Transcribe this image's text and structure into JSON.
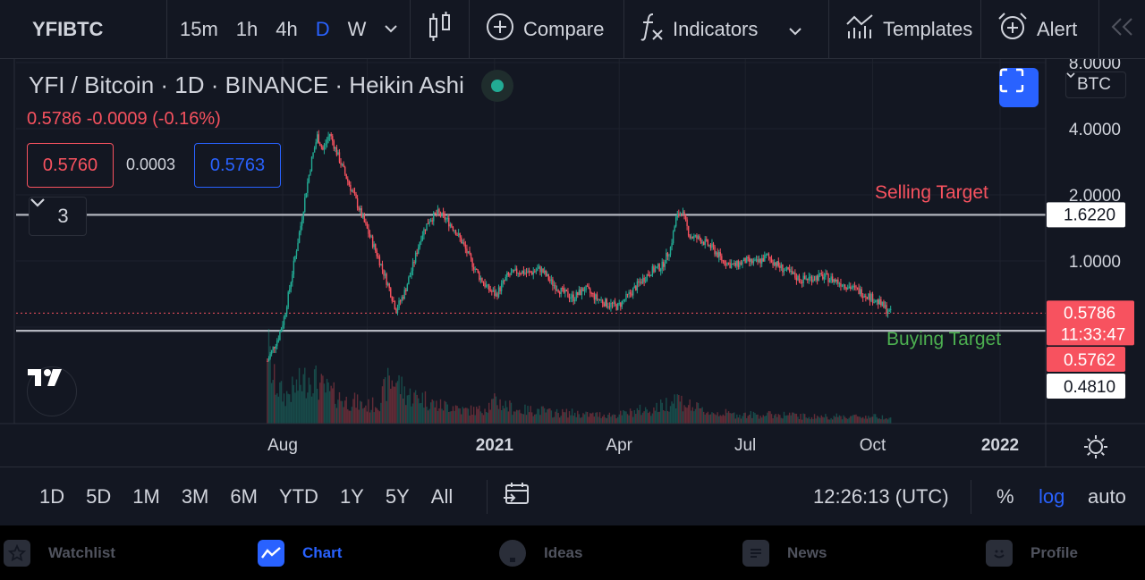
{
  "toolbar": {
    "symbol": "YFIBTC",
    "intervals": [
      "15m",
      "1h",
      "4h",
      "D",
      "W"
    ],
    "active_interval": "D",
    "compare_label": "Compare",
    "indicators_label": "Indicators",
    "templates_label": "Templates",
    "alert_label": "Alert"
  },
  "legend": {
    "title": "YFI / Bitcoin · 1D · BINANCE · Heikin Ashi",
    "price_change": "0.5786  -0.0009 (-0.16%)",
    "sell_price": "0.5760",
    "spread": "0.0003",
    "buy_price": "0.5763",
    "indicator_count": "3"
  },
  "currency_label": "BTC",
  "annotations": {
    "selling_target": "Selling Target",
    "buying_target": "Buying Target"
  },
  "price_axis": {
    "ticks": [
      "8.0000",
      "4.0000",
      "2.0000",
      "1.0000"
    ],
    "top_line_label": "1.6220",
    "last_price": "0.5786",
    "countdown": "11:33:47",
    "bid_label": "0.5762",
    "bottom_line_label": "0.4810"
  },
  "time_axis": {
    "labels": [
      {
        "text": "Aug",
        "bold": false
      },
      {
        "text": "2021",
        "bold": true
      },
      {
        "text": "Apr",
        "bold": false
      },
      {
        "text": "Jul",
        "bold": false
      },
      {
        "text": "Oct",
        "bold": false
      },
      {
        "text": "2022",
        "bold": true
      }
    ]
  },
  "range_bar": {
    "ranges": [
      "1D",
      "5D",
      "1M",
      "3M",
      "6M",
      "YTD",
      "1Y",
      "5Y",
      "All"
    ],
    "clock": "12:26:13 (UTC)",
    "percent_label": "%",
    "log_label": "log",
    "auto_label": "auto"
  },
  "bottom_nav": [
    {
      "label": "Watchlist",
      "icon": "star-icon",
      "active": false
    },
    {
      "label": "Chart",
      "icon": "chart-icon",
      "active": true
    },
    {
      "label": "Ideas",
      "icon": "lightbulb-icon",
      "active": false
    },
    {
      "label": "News",
      "icon": "news-icon",
      "active": false
    },
    {
      "label": "Profile",
      "icon": "smiley-icon",
      "active": false
    }
  ],
  "colors": {
    "up": "#22ab94",
    "down": "#f7525f",
    "accent": "#2962ff",
    "buy_target": "#4caf50"
  },
  "chart_data": {
    "type": "candlestick",
    "style": "Heikin Ashi",
    "scale": "log",
    "ylim": [
      0.3,
      8.0
    ],
    "horizontal_lines": [
      1.622,
      0.481
    ],
    "last_price": 0.5786,
    "x": [
      "2020-07-21",
      "2020-07-25",
      "2020-07-29",
      "2020-08-02",
      "2020-08-06",
      "2020-08-10",
      "2020-08-14",
      "2020-08-18",
      "2020-08-22",
      "2020-08-26",
      "2020-08-30",
      "2020-09-04",
      "2020-09-10",
      "2020-09-16",
      "2020-09-22",
      "2020-09-28",
      "2020-10-04",
      "2020-10-10",
      "2020-10-16",
      "2020-10-22",
      "2020-10-28",
      "2020-11-03",
      "2020-11-09",
      "2020-11-15",
      "2020-11-21",
      "2020-11-27",
      "2020-12-03",
      "2020-12-09",
      "2020-12-15",
      "2020-12-21",
      "2020-12-27",
      "2021-01-02",
      "2021-01-10",
      "2021-01-18",
      "2021-01-26",
      "2021-02-03",
      "2021-02-11",
      "2021-02-19",
      "2021-02-27",
      "2021-03-07",
      "2021-03-15",
      "2021-03-23",
      "2021-03-31",
      "2021-04-08",
      "2021-04-16",
      "2021-04-24",
      "2021-05-02",
      "2021-05-08",
      "2021-05-12",
      "2021-05-16",
      "2021-05-22",
      "2021-05-30",
      "2021-06-07",
      "2021-06-15",
      "2021-06-23",
      "2021-07-01",
      "2021-07-09",
      "2021-07-17",
      "2021-07-25",
      "2021-08-02",
      "2021-08-10",
      "2021-08-18",
      "2021-08-26",
      "2021-09-03",
      "2021-09-11",
      "2021-09-19",
      "2021-09-27",
      "2021-10-05",
      "2021-10-10",
      "2021-10-14"
    ],
    "y": [
      0.35,
      0.4,
      0.45,
      0.55,
      0.75,
      1.05,
      1.45,
      2.1,
      2.9,
      3.7,
      3.2,
      3.8,
      3.0,
      2.4,
      1.95,
      1.55,
      1.25,
      1.0,
      0.78,
      0.6,
      0.72,
      0.95,
      1.3,
      1.55,
      1.65,
      1.55,
      1.4,
      1.2,
      1.0,
      0.85,
      0.75,
      0.7,
      0.85,
      0.9,
      0.88,
      0.92,
      0.8,
      0.72,
      0.68,
      0.75,
      0.68,
      0.64,
      0.62,
      0.7,
      0.8,
      0.9,
      0.95,
      1.15,
      1.55,
      1.7,
      1.3,
      1.25,
      1.15,
      1.0,
      0.95,
      1.0,
      0.98,
      1.05,
      0.95,
      0.88,
      0.82,
      0.84,
      0.85,
      0.82,
      0.78,
      0.74,
      0.7,
      0.65,
      0.61,
      0.5786
    ],
    "volume": [
      0.9,
      0.5,
      0.4,
      0.3,
      0.35,
      0.4,
      0.45,
      0.5,
      0.55,
      0.45,
      0.4,
      0.35,
      0.3,
      0.25,
      0.25,
      0.2,
      0.2,
      0.25,
      0.45,
      0.5,
      0.35,
      0.3,
      0.3,
      0.25,
      0.2,
      0.2,
      0.2,
      0.15,
      0.15,
      0.15,
      0.2,
      0.25,
      0.2,
      0.15,
      0.15,
      0.15,
      0.12,
      0.12,
      0.12,
      0.1,
      0.1,
      0.1,
      0.1,
      0.12,
      0.15,
      0.15,
      0.2,
      0.25,
      0.3,
      0.25,
      0.2,
      0.15,
      0.12,
      0.12,
      0.1,
      0.1,
      0.1,
      0.1,
      0.1,
      0.1,
      0.08,
      0.08,
      0.08,
      0.08,
      0.08,
      0.08,
      0.08,
      0.08,
      0.08,
      0.08
    ]
  }
}
